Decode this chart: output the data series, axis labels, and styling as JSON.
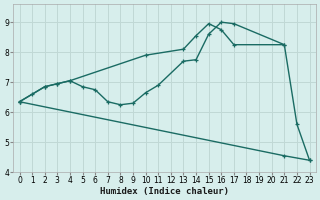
{
  "xlabel": "Humidex (Indice chaleur)",
  "bg_color": "#d7eeec",
  "line_color": "#1a6b63",
  "grid_color": "#c0d8d5",
  "xlim": [
    -0.5,
    23.5
  ],
  "ylim": [
    4.0,
    9.6
  ],
  "yticks": [
    4,
    5,
    6,
    7,
    8,
    9
  ],
  "xticks": [
    0,
    1,
    2,
    3,
    4,
    5,
    6,
    7,
    8,
    9,
    10,
    11,
    12,
    13,
    14,
    15,
    16,
    17,
    18,
    19,
    20,
    21,
    22,
    23
  ],
  "line1_x": [
    0,
    1,
    2,
    3,
    4,
    5,
    6,
    7,
    8,
    9,
    10,
    11,
    13,
    14,
    15,
    16,
    17,
    21,
    22,
    23
  ],
  "line1_y": [
    6.35,
    6.6,
    6.85,
    6.95,
    7.05,
    6.85,
    6.75,
    6.35,
    6.25,
    6.3,
    6.65,
    6.9,
    7.7,
    7.75,
    8.6,
    9.0,
    8.95,
    8.25,
    5.6,
    4.4
  ],
  "line2_x": [
    0,
    2,
    3,
    4,
    10,
    13,
    14,
    15,
    16,
    17,
    21
  ],
  "line2_y": [
    6.35,
    6.85,
    6.95,
    7.05,
    7.9,
    8.1,
    8.55,
    8.95,
    8.75,
    8.25,
    8.25
  ],
  "line3_x": [
    0,
    21,
    23
  ],
  "line3_y": [
    6.35,
    4.55,
    4.4
  ]
}
